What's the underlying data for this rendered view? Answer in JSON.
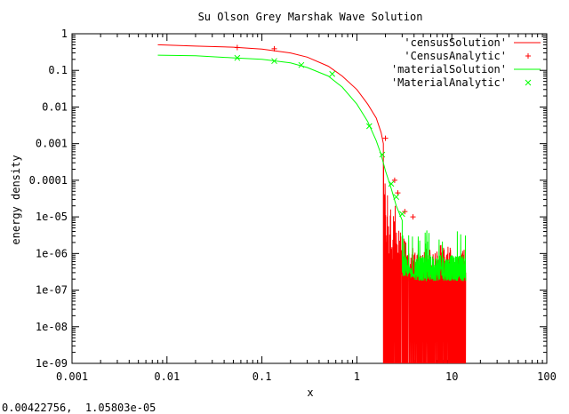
{
  "status_bar": {
    "coords": "0.00422756,  1.05803e-05"
  },
  "chart_data": {
    "type": "line",
    "title": "Su Olson Grey Marshak Wave Solution",
    "xlabel": "x",
    "ylabel": "energy density",
    "x_scale": "log",
    "y_scale": "log",
    "xlim": [
      0.001,
      100
    ],
    "ylim": [
      1e-09,
      1
    ],
    "grid": false,
    "legend_position": "top-right",
    "x_tick_labels": [
      "0.001",
      "0.01",
      "0.1",
      "1",
      "10",
      "100"
    ],
    "y_tick_labels": [
      "1e-09",
      "1e-08",
      "1e-07",
      "1e-06",
      "1e-05",
      "0.0001",
      "0.001",
      "0.01",
      "0.1",
      "1"
    ],
    "colors": {
      "census": "#ff0000",
      "material": "#00ff00"
    },
    "series": [
      {
        "name": "'censusSolution'",
        "style": "line",
        "color": "#ff0000",
        "x": [
          0.008,
          0.02,
          0.05,
          0.1,
          0.2,
          0.3,
          0.5,
          0.7,
          1.0,
          1.3,
          1.6,
          1.8,
          1.9
        ],
        "y": [
          0.5,
          0.46,
          0.43,
          0.38,
          0.3,
          0.23,
          0.13,
          0.07,
          0.03,
          0.012,
          0.005,
          0.002,
          0.001
        ],
        "noisy_tail": {
          "x_start": 1.9,
          "x_end": 14.0,
          "y_high": 0.0003,
          "y_floor": 1.8e-07,
          "y_min": 1e-09
        }
      },
      {
        "name": "'CensusAnalytic'",
        "style": "points",
        "marker": "+",
        "color": "#ff0000",
        "x": [
          0.055,
          0.135,
          2.0,
          2.5,
          2.7,
          3.2,
          3.9
        ],
        "y": [
          0.42,
          0.39,
          0.0014,
          0.0001,
          4.5e-05,
          1.4e-05,
          1e-05
        ]
      },
      {
        "name": "'materialSolution'",
        "style": "line",
        "color": "#00ff00",
        "x": [
          0.008,
          0.02,
          0.05,
          0.1,
          0.2,
          0.3,
          0.5,
          0.7,
          1.0,
          1.3,
          1.6,
          1.8,
          2.0,
          2.3,
          2.6,
          3.0
        ],
        "y": [
          0.26,
          0.25,
          0.22,
          0.2,
          0.16,
          0.12,
          0.07,
          0.035,
          0.012,
          0.004,
          0.0012,
          0.0005,
          0.00018,
          6e-05,
          2e-05,
          8e-06
        ],
        "noisy_tail": {
          "x_start": 3.0,
          "x_end": 14.0,
          "y_high": 1.2e-06,
          "y_floor": 1.8e-07
        }
      },
      {
        "name": "'MaterialAnalytic'",
        "style": "points",
        "marker": "x",
        "color": "#00ff00",
        "x": [
          0.055,
          0.135,
          0.26,
          0.55,
          1.35,
          1.85,
          2.3,
          2.6,
          3.0
        ],
        "y": [
          0.22,
          0.18,
          0.14,
          0.08,
          0.003,
          0.0005,
          8e-05,
          3.5e-05,
          1.2e-05
        ]
      }
    ]
  }
}
